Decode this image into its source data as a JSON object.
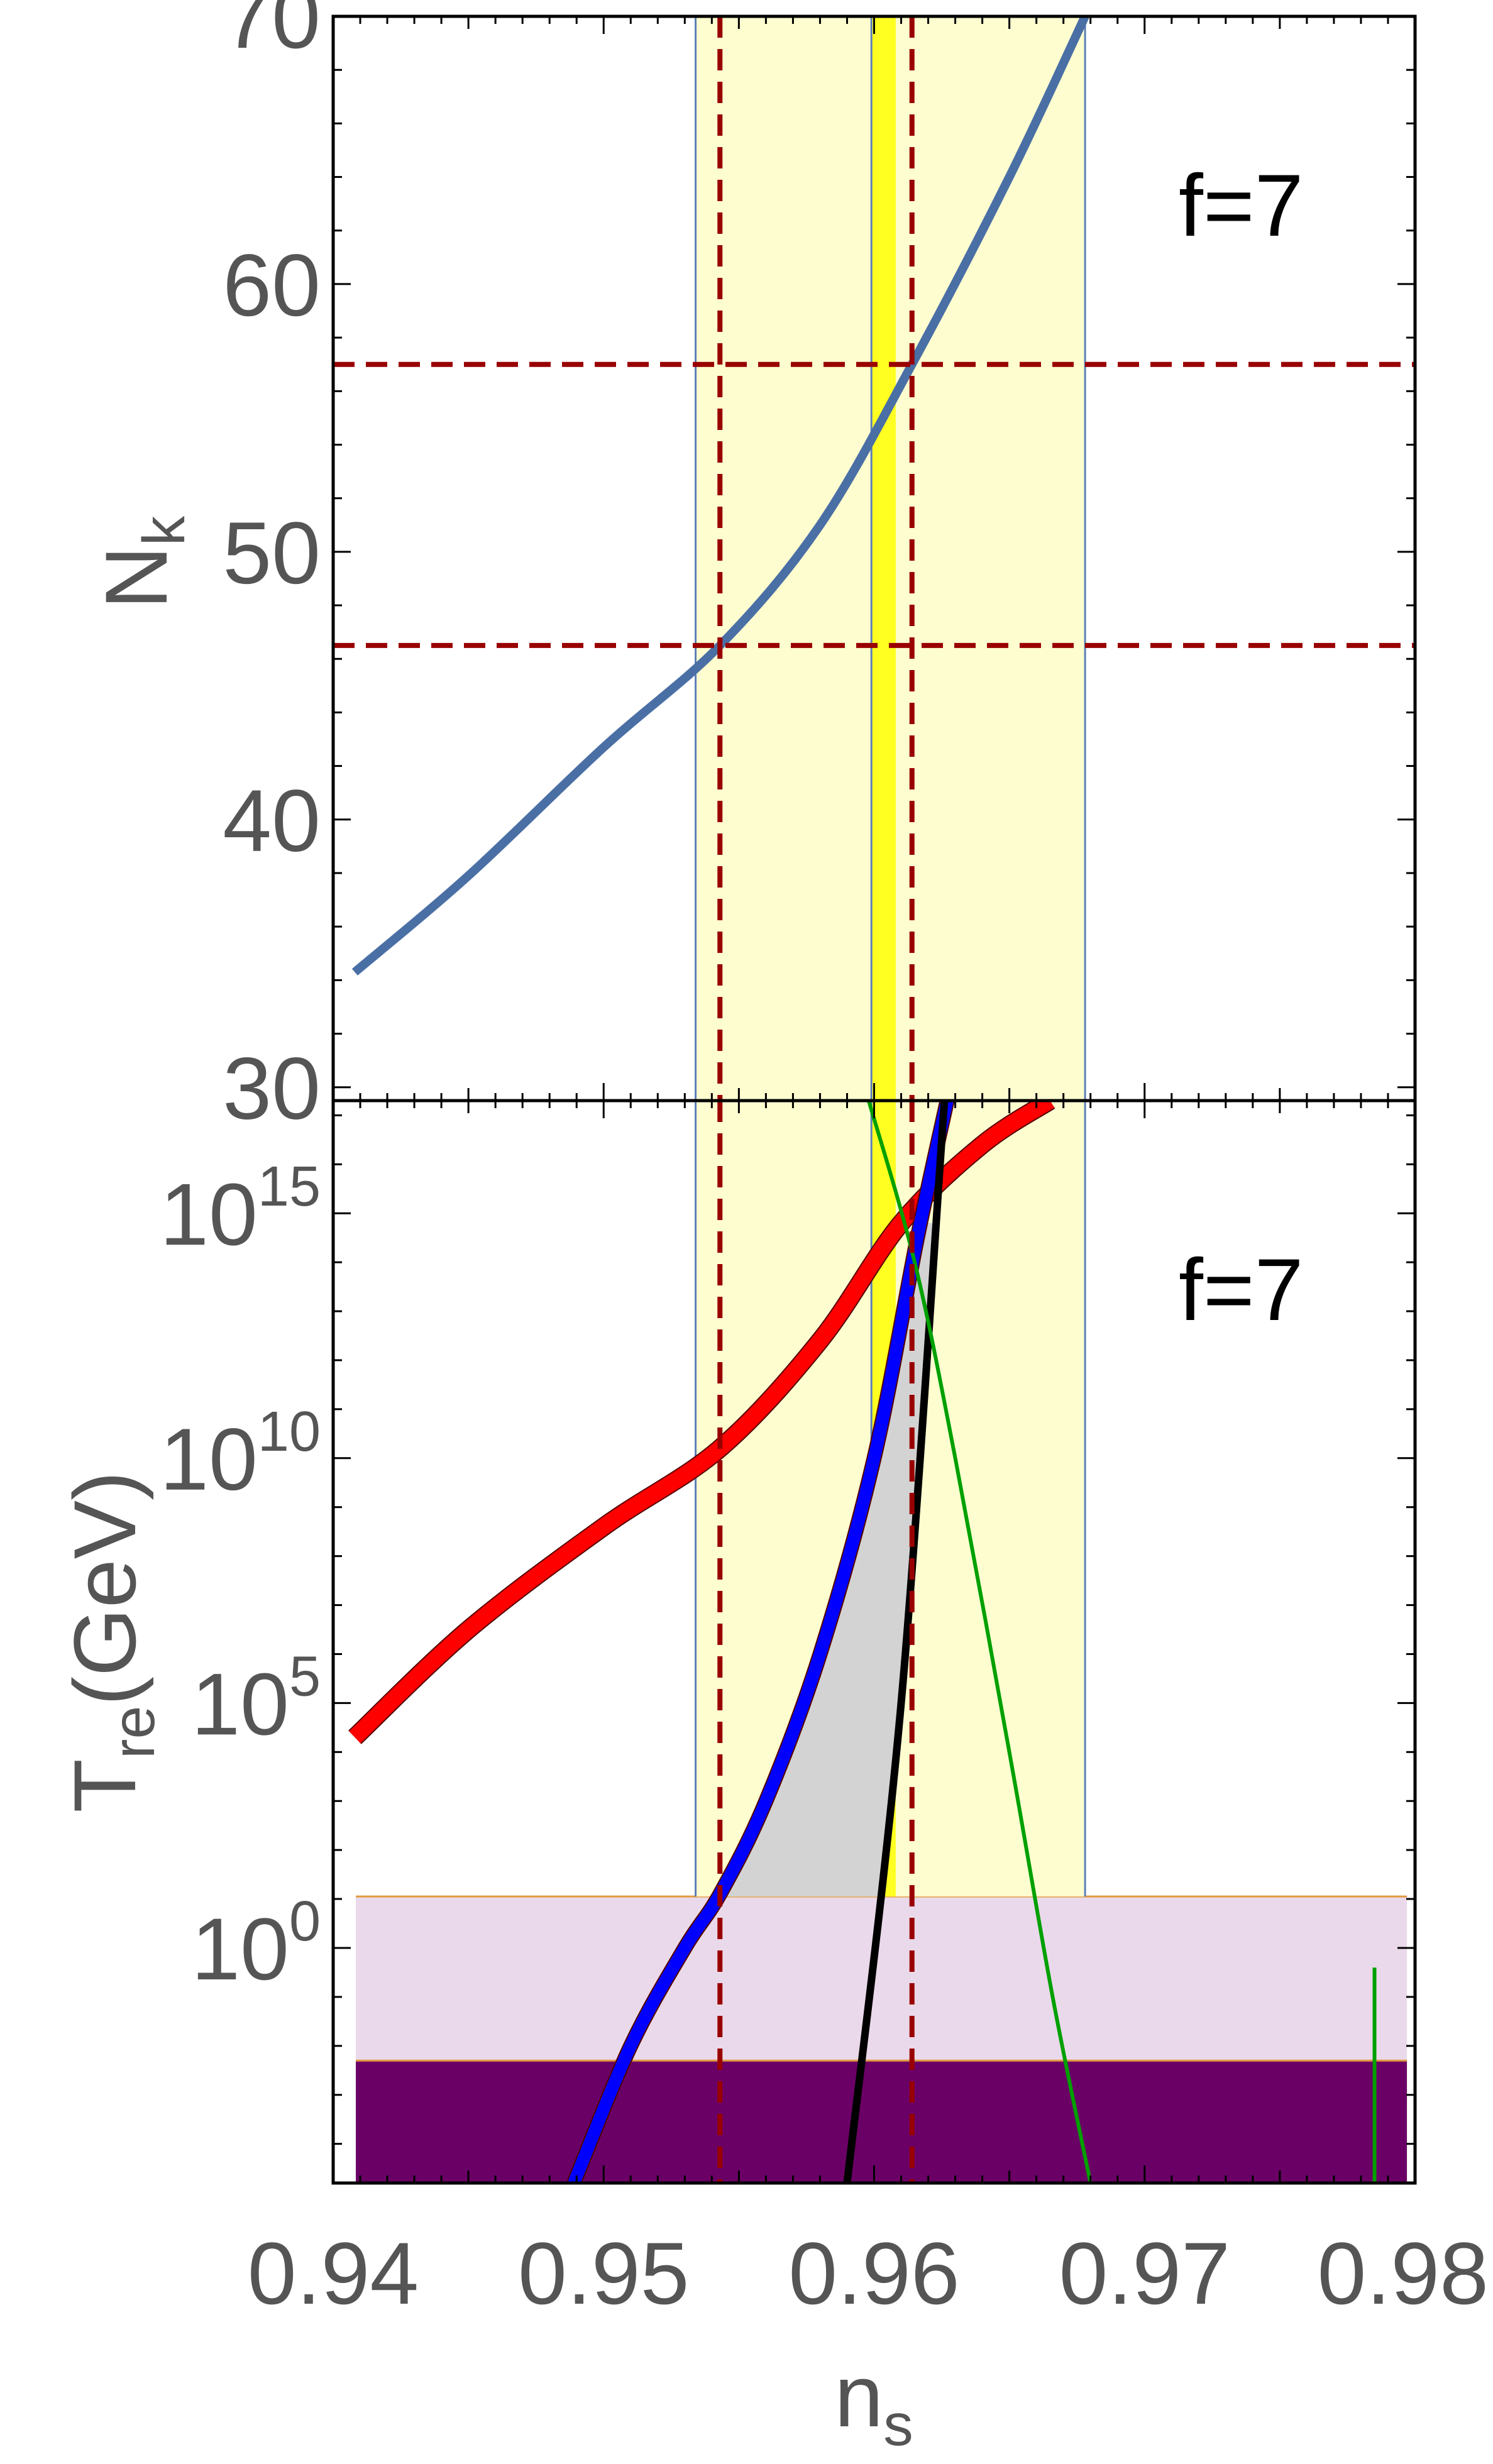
{
  "chart_data": [
    {
      "type": "line",
      "panel": "top",
      "title": "",
      "xlabel": "",
      "ylabel": "N",
      "ylabel_sub": "k",
      "annotation": "f=7",
      "xlim": [
        0.94,
        0.98
      ],
      "ylim": [
        29.5,
        70
      ],
      "yticks": [
        "30",
        "40",
        "50",
        "60",
        "70"
      ],
      "ytick_values": [
        30,
        40,
        50,
        60,
        70
      ],
      "grid": false,
      "colors": {
        "curve": "#4a6fa5",
        "band_light": "#fdfdd0",
        "band_strong": "#ffff22",
        "band_edge": "#5b7fb5",
        "dashed": "#990000"
      },
      "bands": [
        {
          "kind": "light",
          "x0": 0.9534,
          "x1": 0.9678
        },
        {
          "kind": "strong",
          "x0": 0.9599,
          "x1": 0.9608
        }
      ],
      "dashed_vertical": [
        0.9543,
        0.9614
      ],
      "dashed_horizontal": [
        46.5,
        57.0
      ],
      "series": [
        {
          "color": "#4a6fa5",
          "x": [
            0.9408,
            0.945,
            0.95,
            0.9543,
            0.958,
            0.9614,
            0.965,
            0.9678
          ],
          "y": [
            34.3,
            37.9,
            42.7,
            46.5,
            51.0,
            57.0,
            64.0,
            70.0
          ]
        }
      ]
    },
    {
      "type": "line",
      "panel": "bottom",
      "title": "",
      "xlabel": "n",
      "xlabel_sub": "s",
      "ylabel": "T",
      "ylabel_sub": "re",
      "ylabel_unit": "(GeV)",
      "annotation": "f=7",
      "xlim": [
        0.94,
        0.98
      ],
      "xticks": [
        "0.94",
        "0.95",
        "0.96",
        "0.97",
        "0.98"
      ],
      "xtick_values": [
        0.94,
        0.95,
        0.96,
        0.97,
        0.98
      ],
      "ylim_log10": [
        -4.8,
        17.3
      ],
      "ytick_base": "10",
      "ytick_exponents": [
        "0",
        "5",
        "10",
        "15"
      ],
      "ytick_values_log10": [
        0,
        5,
        10,
        15
      ],
      "grid": false,
      "colors": {
        "red": "#ff0000",
        "blue": "#0000ff",
        "black": "#000000",
        "green": "#00a000",
        "shade": "#d3d3d3",
        "purple_light": "#ead9ea",
        "purple_dark": "#6a0066",
        "orange": "#e39a40",
        "dashed": "#990000"
      },
      "dashed_vertical": [
        0.9543,
        0.9614
      ],
      "horizontal_bands_log10": [
        {
          "kind": "dark",
          "y0": -4.8,
          "y1": -2.3
        },
        {
          "kind": "light",
          "y0": -2.3,
          "y1": 1.05
        }
      ],
      "bands": [
        {
          "kind": "light",
          "x0": 0.9534,
          "x1": 0.9678,
          "y0": 1.05,
          "y1": 17.3
        },
        {
          "kind": "strong",
          "x0": 0.9599,
          "x1": 0.9608,
          "y0": 1.05,
          "y1": 17.3
        }
      ],
      "series": [
        {
          "color": "#ff0000",
          "x": [
            0.9408,
            0.945,
            0.95,
            0.9543,
            0.958,
            0.961,
            0.964,
            0.9665
          ],
          "y_log10": [
            4.3,
            6.5,
            8.6,
            10.2,
            12.4,
            14.8,
            16.4,
            17.3
          ]
        },
        {
          "color": "#0000ff",
          "x": [
            0.9489,
            0.951,
            0.953,
            0.9543,
            0.956,
            0.958,
            0.96,
            0.9616,
            0.9627
          ],
          "y_log10": [
            -4.8,
            -2.0,
            0.0,
            1.1,
            3.0,
            6.0,
            10.0,
            14.5,
            17.3
          ]
        },
        {
          "color": "#000000",
          "x": [
            0.959,
            0.961,
            0.9626
          ],
          "y_log10": [
            -4.8,
            5.0,
            17.3
          ]
        },
        {
          "color": "#00a000",
          "x": [
            0.9598,
            0.9615,
            0.963,
            0.965,
            0.9666,
            0.968
          ],
          "y_log10": [
            17.3,
            14.0,
            10.0,
            4.0,
            -1.0,
            -4.8
          ]
        },
        {
          "color": "#00a000",
          "x": [
            0.9785,
            0.9785
          ],
          "y_log10": [
            -0.4,
            -4.8
          ]
        }
      ]
    }
  ]
}
